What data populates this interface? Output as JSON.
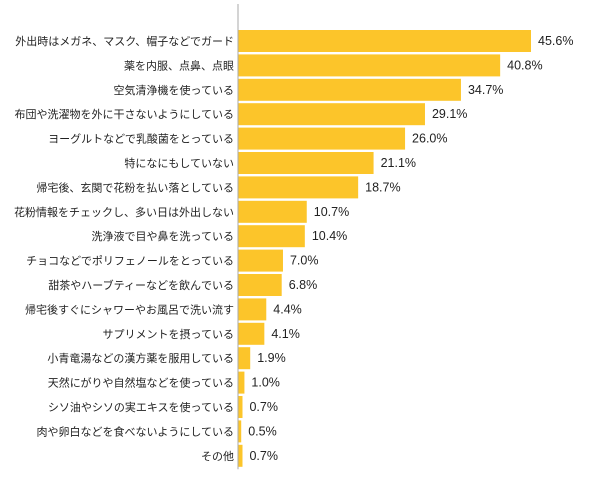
{
  "chart_data": {
    "type": "bar",
    "orientation": "horizontal",
    "categories": [
      "外出時はメガネ、マスク、帽子などでガード",
      "薬を内服、点鼻、点眼",
      "空気清浄機を使っている",
      "布団や洗濯物を外に干さないようにしている",
      "ヨーグルトなどで乳酸菌をとっている",
      "特になにもしていない",
      "帰宅後、玄関で花粉を払い落としている",
      "花粉情報をチェックし、多い日は外出しない",
      "洗浄液で目や鼻を洗っている",
      "チョコなどでポリフェノールをとっている",
      "甜茶やハーブティーなどを飲んでいる",
      "帰宅後すぐにシャワーやお風呂で洗い流す",
      "サプリメントを摂っている",
      "小青竜湯などの漢方薬を服用している",
      "天然にがりや自然塩などを使っている",
      "シソ油やシソの実エキスを使っている",
      "肉や卵白などを食べないようにしている",
      "その他"
    ],
    "values": [
      45.6,
      40.8,
      34.7,
      29.1,
      26.0,
      21.1,
      18.7,
      10.7,
      10.4,
      7.0,
      6.8,
      4.4,
      4.1,
      1.9,
      1.0,
      0.7,
      0.5,
      0.7
    ],
    "value_labels": [
      "45.6%",
      "40.8%",
      "34.7%",
      "29.1%",
      "26.0%",
      "21.1%",
      "18.7%",
      "10.7%",
      "10.4%",
      "7.0%",
      "6.8%",
      "4.4%",
      "4.1%",
      "1.9%",
      "1.0%",
      "0.7%",
      "0.5%",
      "0.7%"
    ],
    "xlim": [
      0,
      50
    ],
    "grid": false,
    "colors": {
      "bar": "#fcc52a",
      "axis": "#aaaaaa"
    }
  }
}
